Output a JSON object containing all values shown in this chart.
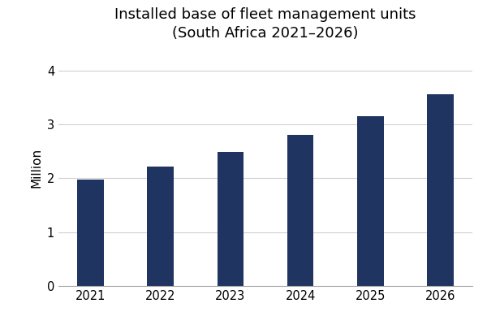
{
  "title": "Installed base of fleet management units\n(South Africa 2021–2026)",
  "ylabel": "Million",
  "categories": [
    "2021",
    "2022",
    "2023",
    "2024",
    "2025",
    "2026"
  ],
  "values": [
    1.97,
    2.22,
    2.48,
    2.8,
    3.15,
    3.55
  ],
  "bar_color": "#1f3461",
  "ylim": [
    0,
    4.4
  ],
  "yticks": [
    0,
    1,
    2,
    3,
    4
  ],
  "background_color": "#ffffff",
  "title_fontsize": 13,
  "ylabel_fontsize": 11,
  "tick_fontsize": 10.5,
  "bar_width": 0.38,
  "grid_color": "#d0d0d0",
  "figsize": [
    6.0,
    4.0
  ],
  "dpi": 100
}
